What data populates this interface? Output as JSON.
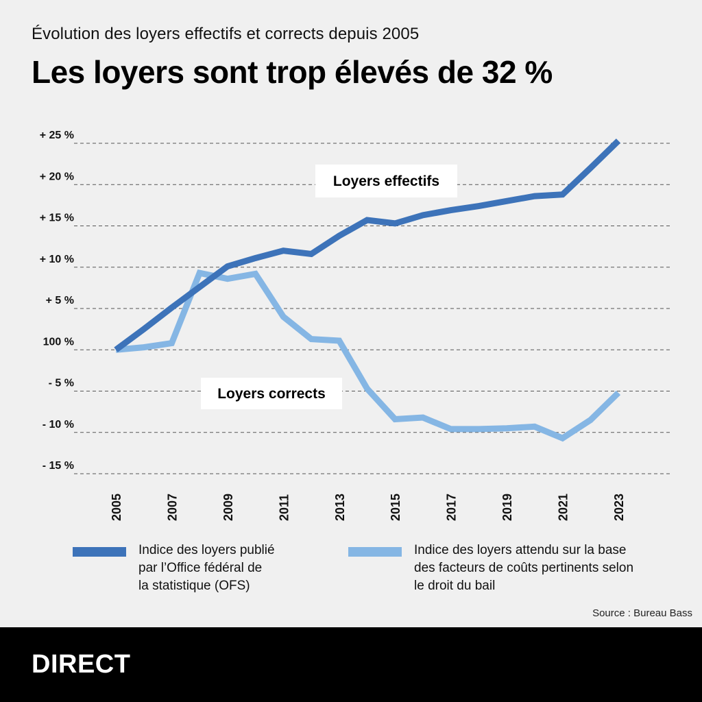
{
  "subtitle": "Évolution des loyers effectifs et corrects depuis 2005",
  "title": "Les loyers sont trop élevés de 32 %",
  "chart_data": {
    "type": "line",
    "x": [
      2005,
      2006,
      2007,
      2008,
      2009,
      2010,
      2011,
      2012,
      2013,
      2014,
      2015,
      2016,
      2017,
      2018,
      2019,
      2020,
      2021,
      2022,
      2023
    ],
    "x_tick_labels": [
      "2005",
      "2007",
      "2009",
      "2011",
      "2013",
      "2015",
      "2017",
      "2019",
      "2021",
      "2023"
    ],
    "y_tick_values": [
      25,
      20,
      15,
      10,
      5,
      0,
      -5,
      -10,
      -15
    ],
    "y_tick_labels": [
      "+ 25 %",
      "+ 20 %",
      "+ 15 %",
      "+ 10 %",
      "+ 5 %",
      "100 %",
      "- 5 %",
      "- 10 %",
      "- 15 %"
    ],
    "ylim": [
      -15,
      25
    ],
    "grid": true,
    "series": [
      {
        "name": "Loyers effectifs",
        "color": "#3d73b9",
        "values": [
          0,
          2.5,
          5.1,
          7.6,
          10.1,
          11.1,
          12.0,
          11.6,
          13.8,
          15.7,
          15.3,
          16.3,
          16.9,
          17.4,
          18.0,
          18.6,
          18.8,
          22.0,
          25.3
        ]
      },
      {
        "name": "Loyers corrects",
        "color": "#85b6e4",
        "values": [
          0,
          0.3,
          0.8,
          9.3,
          8.6,
          9.2,
          4.0,
          1.3,
          1.1,
          -4.7,
          -8.4,
          -8.2,
          -9.6,
          -9.6,
          -9.5,
          -9.3,
          -10.7,
          -8.5,
          -5.2
        ]
      }
    ],
    "annotations": [
      "Loyers effectifs",
      "Loyers corrects"
    ]
  },
  "legend": [
    {
      "label": "Indice des loyers publié\npar l’Office fédéral de\nla statistique (OFS)",
      "color": "#3d73b9"
    },
    {
      "label": "Indice des loyers attendu sur la base\ndes facteurs de coûts pertinents selon\nle droit du bail",
      "color": "#85b6e4"
    }
  ],
  "source": "Source : Bureau Bass",
  "brand": "DIRECT"
}
